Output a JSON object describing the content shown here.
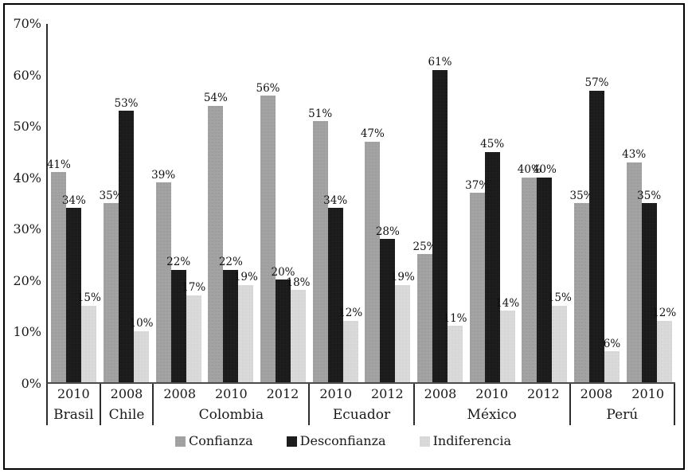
{
  "chart_data": {
    "type": "bar",
    "title": "",
    "xlabel": "",
    "ylabel": "",
    "ylim": [
      0,
      70
    ],
    "y_tick_step": 10,
    "y_tick_labels": [
      "0%",
      "10%",
      "20%",
      "30%",
      "40%",
      "50%",
      "60%",
      "70%"
    ],
    "grid": false,
    "legend_position": "bottom-center",
    "value_label_suffix": "%",
    "series_names": [
      "Confianza",
      "Desconfianza",
      "Indiferencia"
    ],
    "series_colors": [
      "#a3a3a3",
      "#1b1b1b",
      "#dadada"
    ],
    "groups": [
      {
        "country": "Brasil",
        "years": [
          {
            "year": "2010",
            "values": [
              41,
              34,
              15
            ]
          }
        ]
      },
      {
        "country": "Chile",
        "years": [
          {
            "year": "2008",
            "values": [
              35,
              53,
              10
            ]
          }
        ]
      },
      {
        "country": "Colombia",
        "years": [
          {
            "year": "2008",
            "values": [
              39,
              22,
              17
            ]
          },
          {
            "year": "2010",
            "values": [
              54,
              22,
              19
            ]
          },
          {
            "year": "2012",
            "values": [
              56,
              20,
              18
            ]
          }
        ]
      },
      {
        "country": "Ecuador",
        "years": [
          {
            "year": "2010",
            "values": [
              51,
              34,
              12
            ]
          },
          {
            "year": "2012",
            "values": [
              47,
              28,
              19
            ]
          }
        ]
      },
      {
        "country": "México",
        "years": [
          {
            "year": "2008",
            "values": [
              25,
              61,
              11
            ]
          },
          {
            "year": "2010",
            "values": [
              37,
              45,
              14
            ]
          },
          {
            "year": "2012",
            "values": [
              40,
              40,
              15
            ]
          }
        ]
      },
      {
        "country": "Perú",
        "years": [
          {
            "year": "2008",
            "values": [
              35,
              57,
              6
            ]
          },
          {
            "year": "2010",
            "values": [
              43,
              35,
              12
            ]
          }
        ]
      }
    ],
    "legend": [
      "Confianza",
      "Desconfianza",
      "Indiferencia"
    ]
  }
}
